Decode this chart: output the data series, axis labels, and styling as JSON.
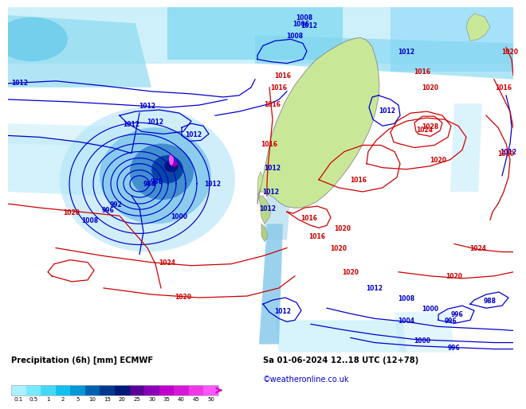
{
  "title_left": "Precipitation (6h) [mm] ECMWF",
  "title_right": "Sa 01-06-2024 12..18 UTC (12+78)",
  "credit": "©weatheronline.co.uk",
  "colorbar_levels": [
    0.1,
    0.5,
    1,
    2,
    5,
    10,
    15,
    20,
    25,
    30,
    35,
    40,
    45,
    50
  ],
  "colorbar_colors": [
    "#aaf0ff",
    "#78e8ff",
    "#44d8f8",
    "#10c0f0",
    "#0098d8",
    "#0060b0",
    "#003890",
    "#001878",
    "#580098",
    "#8800b8",
    "#c000cc",
    "#d818d8",
    "#f038e8",
    "#ff58ff"
  ],
  "bg_ocean": "#c8e4f4",
  "bg_land": "#c8e8a0",
  "slp_blue": "#0000cc",
  "slp_red": "#cc0000",
  "fig_width": 6.34,
  "fig_height": 4.9,
  "map_bg": "#d0e8f6",
  "precip_light": "#b0eeff",
  "precip_mid": "#70ccee",
  "precip_mod": "#3090d0",
  "precip_heavy": "#0040a0",
  "precip_vheavy": "#600090",
  "precip_extreme": "#ff50ff"
}
